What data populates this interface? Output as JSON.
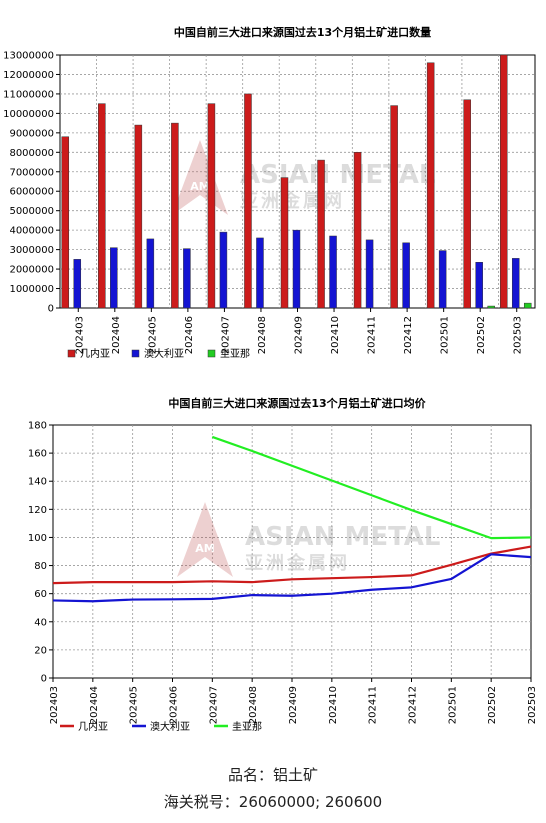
{
  "watermark": {
    "line1": "ASIAN METAL",
    "line2": "亚洲金属网",
    "logo": "AM"
  },
  "chart_data": [
    {
      "type": "bar",
      "title": "中国自前三大进口来源国过去13个月铝土矿进口数量",
      "categories": [
        "202403",
        "202404",
        "202405",
        "202406",
        "202407",
        "202408",
        "202409",
        "202410",
        "202411",
        "202412",
        "202501",
        "202502",
        "202503"
      ],
      "ylim": [
        0,
        13000000
      ],
      "yticks": [
        0,
        1000000,
        2000000,
        3000000,
        4000000,
        5000000,
        6000000,
        7000000,
        8000000,
        9000000,
        10000000,
        11000000,
        12000000,
        13000000
      ],
      "grid": true,
      "legend_position": "bottom-left",
      "series": [
        {
          "name": "几内亚",
          "color": "#cc1b1b",
          "values": [
            8800000,
            10500000,
            9400000,
            9500000,
            10500000,
            11000000,
            6700000,
            7600000,
            8000000,
            10400000,
            12600000,
            10700000,
            13000000
          ]
        },
        {
          "name": "澳大利亚",
          "color": "#1414d2",
          "values": [
            2500000,
            3100000,
            3550000,
            3050000,
            3900000,
            3600000,
            4000000,
            3700000,
            3500000,
            3350000,
            2950000,
            2350000,
            2550000
          ]
        },
        {
          "name": "圭亚那",
          "color": "#22cc22",
          "values": [
            null,
            null,
            null,
            null,
            null,
            null,
            null,
            null,
            null,
            null,
            null,
            100000,
            250000
          ]
        }
      ]
    },
    {
      "type": "line",
      "title": "中国自前三大进口来源国过去13个月铝土矿进口均价",
      "categories": [
        "202403",
        "202404",
        "202405",
        "202406",
        "202407",
        "202408",
        "202409",
        "202410",
        "202411",
        "202412",
        "202501",
        "202502",
        "202503"
      ],
      "ylim": [
        0,
        180
      ],
      "yticks": [
        0,
        20,
        40,
        60,
        80,
        100,
        120,
        140,
        160,
        180
      ],
      "grid": true,
      "legend_position": "bottom-left",
      "series": [
        {
          "name": "几内亚",
          "color": "#cc1b1b",
          "values": [
            67.5,
            68.2,
            68.2,
            68.2,
            68.8,
            68.2,
            70.2,
            71.0,
            71.8,
            73.0,
            80.5,
            88.5,
            93.5
          ]
        },
        {
          "name": "澳大利亚",
          "color": "#1414d2",
          "values": [
            55.2,
            54.6,
            55.8,
            56.0,
            56.3,
            59.0,
            58.5,
            60.0,
            62.8,
            64.5,
            70.5,
            88.0,
            86.0
          ]
        },
        {
          "name": "圭亚那",
          "color": "#22ee22",
          "values": [
            null,
            null,
            null,
            null,
            171.5,
            161.5,
            151.0,
            140.5,
            130.0,
            119.5,
            109.5,
            99.5,
            100.0
          ]
        }
      ]
    }
  ],
  "footer": {
    "product": "品名：铝土矿",
    "hs_code": "海关税号：26060000; 260600"
  }
}
